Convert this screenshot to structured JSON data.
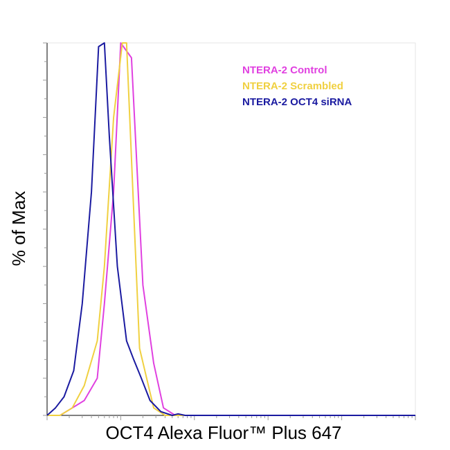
{
  "chart_data": {
    "type": "line",
    "title": "",
    "xlabel": "OCT4 Alexa Fluor™ Plus 647",
    "ylabel": "% of Max",
    "x_scale": "log",
    "xlim": [
      1,
      100000
    ],
    "ylim": [
      0,
      100
    ],
    "x_tick_labels": [],
    "y_tick_labels": [],
    "grid": false,
    "legend_position": "top-right",
    "series": [
      {
        "name": "NTERA-2 Control",
        "color": "#e040e0",
        "x": [
          1,
          1.5,
          2.2,
          3.2,
          4.8,
          6,
          8,
          10,
          14,
          20,
          28,
          38,
          55,
          80,
          120,
          200,
          500,
          2000,
          100000
        ],
        "y": [
          0,
          0,
          2,
          4,
          10,
          30,
          60,
          100,
          96,
          35,
          14,
          2,
          0,
          0,
          0,
          0,
          0,
          0,
          0
        ]
      },
      {
        "name": "NTERA-2 Scrambled",
        "color": "#f0d040",
        "x": [
          1,
          1.5,
          2.2,
          3.2,
          4.8,
          6,
          8,
          10.5,
          12,
          15,
          18,
          28,
          40,
          60,
          100,
          500,
          2000,
          100000
        ],
        "y": [
          0,
          0,
          2,
          8,
          20,
          40,
          80,
          100,
          100,
          55,
          18,
          2,
          0,
          0,
          0,
          0,
          0,
          0
        ]
      },
      {
        "name": "NTERA-2 OCT4 siRNA",
        "color": "#1a1aa0",
        "x": [
          1,
          1.3,
          1.7,
          2.3,
          3,
          4,
          5,
          6,
          7,
          9,
          12,
          15,
          19,
          25,
          35,
          50,
          60,
          75,
          100,
          500,
          2000,
          100000
        ],
        "y": [
          0,
          2,
          5,
          12,
          30,
          60,
          99,
          100,
          75,
          40,
          20,
          15,
          10,
          4,
          1,
          0,
          0.4,
          0,
          0,
          0,
          0,
          0
        ]
      }
    ]
  }
}
